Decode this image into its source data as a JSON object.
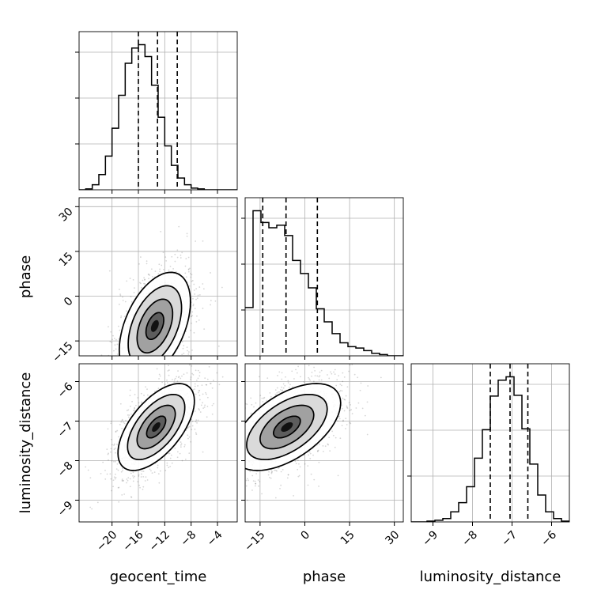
{
  "chart_data": {
    "type": "corner",
    "parameters": [
      "geocent_time",
      "phase",
      "luminosity_distance"
    ],
    "quantile_levels": [
      0.16,
      0.5,
      0.84
    ],
    "grid": true,
    "axes": {
      "geocent_time": {
        "range": [
          -25,
          -1
        ],
        "ticks": [
          -20,
          -16,
          -12,
          -8,
          -4
        ]
      },
      "phase": {
        "range": [
          -20,
          33
        ],
        "ticks": [
          -15,
          0,
          15,
          30
        ]
      },
      "luminosity_distance": {
        "range": [
          -9.55,
          -5.55
        ],
        "ticks": [
          -9,
          -8,
          -7,
          -6
        ]
      }
    },
    "hist1d": {
      "geocent_time": {
        "bin_edges": [
          -25,
          -24,
          -23,
          -22,
          -21,
          -20,
          -19,
          -18,
          -17,
          -16,
          -15,
          -14,
          -13,
          -12,
          -11,
          -10,
          -9,
          -8,
          -7,
          -6,
          -5,
          -4,
          -3,
          -2,
          -1
        ],
        "counts": [
          0,
          1,
          6,
          18,
          40,
          73,
          112,
          150,
          168,
          172,
          158,
          124,
          86,
          52,
          29,
          14,
          6,
          2,
          1,
          0,
          0,
          0,
          0,
          0
        ],
        "quantiles": [
          -16.0,
          -13.1,
          -10.1
        ]
      },
      "phase": {
        "bin_edges": [
          -20,
          -17.35,
          -14.7,
          -12.05,
          -9.4,
          -6.75,
          -4.1,
          -1.45,
          1.2,
          3.85,
          6.5,
          9.15,
          11.8,
          14.45,
          17.1,
          19.75,
          22.4,
          25.05,
          27.7,
          30.35,
          33
        ],
        "counts": [
          37,
          111,
          102,
          98,
          100,
          92,
          73,
          63,
          52,
          36,
          26,
          17,
          10,
          7,
          6,
          4,
          2,
          1,
          0,
          0
        ],
        "quantiles": [
          -14.1,
          -6.3,
          4.2
        ]
      },
      "luminosity_distance": {
        "bin_edges": [
          -9.55,
          -9.35,
          -9.15,
          -8.95,
          -8.75,
          -8.55,
          -8.35,
          -8.15,
          -7.95,
          -7.75,
          -7.55,
          -7.35,
          -7.15,
          -6.95,
          -6.75,
          -6.55,
          -6.35,
          -6.15,
          -5.95,
          -5.75,
          -5.55
        ],
        "counts": [
          0,
          0,
          1,
          2,
          4,
          12,
          23,
          42,
          76,
          110,
          150,
          169,
          173,
          151,
          111,
          69,
          32,
          12,
          4,
          1
        ],
        "quantiles": [
          -7.55,
          -7.05,
          -6.6
        ]
      }
    },
    "pairs": [
      {
        "x": "geocent_time",
        "y": "phase",
        "mean": [
          -13.5,
          -10.0
        ],
        "std": [
          2.7,
          9.0
        ],
        "corr": 0.45,
        "contour_levels_sigma": [
          0.5,
          1.0,
          1.5,
          2.0
        ]
      },
      {
        "x": "geocent_time",
        "y": "luminosity_distance",
        "mean": [
          -13.3,
          -7.15
        ],
        "std": [
          2.9,
          0.55
        ],
        "corr": 0.6,
        "contour_levels_sigma": [
          0.5,
          1.0,
          1.5,
          2.0
        ]
      },
      {
        "x": "phase",
        "y": "luminosity_distance",
        "mean": [
          -6.0,
          -7.15
        ],
        "std": [
          9.0,
          0.55
        ],
        "corr": 0.55,
        "contour_levels_sigma": [
          0.5,
          1.0,
          1.5,
          2.0
        ]
      }
    ]
  }
}
